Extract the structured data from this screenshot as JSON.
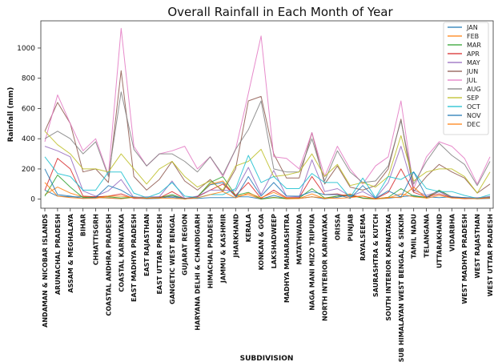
{
  "chart_data": {
    "type": "line",
    "title": "Overall Rainfall in Each Month of Year",
    "xlabel": "SUBDIVISION",
    "ylabel": "Rainfall (mm)",
    "ylim": [
      -60,
      1180
    ],
    "yticks": [
      0,
      200,
      400,
      600,
      800,
      1000
    ],
    "grid": false,
    "legend_position": "top-right",
    "categories": [
      "ANDAMAN & NICOBAR ISLANDS",
      "ARUNACHAL PRADESH",
      "ASSAM & MEGHALAYA",
      "BIHAR",
      "CHHATTISGRH",
      "COASTAL ANDHRA PRADESH",
      "COASTAL KARNATAKA",
      "EAST MADHYA PRADESH",
      "EAST RAJASTHAN",
      "EAST UTTAR PRADESH",
      "GANGETIC WEST BENGAL",
      "GUJARAT REGION",
      "HARYANA DELHI & CHANDIGARH",
      "HIMACHAL PRADESH",
      "JAMMU & KASHMIR",
      "JHARKHAND",
      "KERALA",
      "KONKAN & GOA",
      "LAKSHADWEEP",
      "MADHYA MAHARASHTRA",
      "MATATHWADA",
      "NAGA MANI MIZO TRIPURA",
      "NORTH INTERIOR KARNATAKA",
      "ORISSA",
      "PUNJAB",
      "RAYALSEEMA",
      "SAURASHTRA & KUTCH",
      "SOUTH INTERIOR KARNATAKA",
      "SUB HIMALAYAN WEST BENGAL & SIKKIM",
      "TAMIL NADU",
      "TELANGANA",
      "UTTARAKHAND",
      "VIDARBHA",
      "WEST MADHYA PRADESH",
      "WEST RAJASTHAN",
      "WEST UTTAR PRADESH"
    ],
    "series": [
      {
        "name": "JAN",
        "color": "#1f77b4",
        "values": [
          60,
          20,
          15,
          15,
          10,
          8,
          3,
          15,
          8,
          15,
          12,
          3,
          18,
          95,
          110,
          15,
          15,
          1,
          25,
          3,
          5,
          15,
          2,
          12,
          30,
          8,
          2,
          6,
          15,
          25,
          10,
          50,
          10,
          10,
          4,
          18
        ]
      },
      {
        "name": "FEB",
        "color": "#ff7f0e",
        "values": [
          30,
          80,
          40,
          15,
          12,
          8,
          3,
          12,
          8,
          12,
          22,
          1,
          18,
          100,
          120,
          20,
          30,
          1,
          12,
          2,
          4,
          35,
          3,
          20,
          35,
          5,
          1,
          8,
          35,
          15,
          8,
          55,
          10,
          7,
          5,
          15
        ]
      },
      {
        "name": "MAR",
        "color": "#2ca02c",
        "values": [
          20,
          160,
          80,
          10,
          15,
          15,
          8,
          12,
          5,
          10,
          30,
          1,
          15,
          110,
          150,
          25,
          45,
          1,
          10,
          5,
          8,
          70,
          8,
          20,
          25,
          8,
          2,
          12,
          70,
          20,
          12,
          60,
          15,
          7,
          5,
          12
        ]
      },
      {
        "name": "APR",
        "color": "#d62728",
        "values": [
          60,
          270,
          200,
          20,
          15,
          20,
          35,
          5,
          5,
          8,
          50,
          2,
          15,
          60,
          100,
          25,
          110,
          5,
          60,
          10,
          10,
          150,
          30,
          35,
          15,
          20,
          2,
          45,
          200,
          45,
          15,
          35,
          10,
          3,
          5,
          8
        ]
      },
      {
        "name": "MAY",
        "color": "#9467bd",
        "values": [
          350,
          320,
          280,
          55,
          20,
          55,
          130,
          10,
          15,
          15,
          120,
          5,
          20,
          60,
          60,
          55,
          210,
          30,
          190,
          20,
          15,
          260,
          50,
          70,
          20,
          50,
          5,
          110,
          350,
          60,
          25,
          50,
          15,
          10,
          10,
          15
        ]
      },
      {
        "name": "JUN",
        "color": "#8c564b",
        "values": [
          450,
          640,
          500,
          180,
          200,
          110,
          850,
          150,
          60,
          130,
          250,
          120,
          60,
          130,
          50,
          200,
          650,
          680,
          300,
          140,
          140,
          440,
          100,
          220,
          80,
          60,
          90,
          200,
          530,
          50,
          150,
          230,
          180,
          140,
          40,
          100
        ]
      },
      {
        "name": "JUL",
        "color": "#e377c2",
        "values": [
          380,
          690,
          500,
          320,
          400,
          160,
          1130,
          350,
          220,
          300,
          320,
          350,
          200,
          280,
          150,
          330,
          700,
          1080,
          280,
          270,
          200,
          440,
          150,
          350,
          200,
          100,
          220,
          280,
          650,
          70,
          280,
          380,
          350,
          270,
          100,
          280
        ]
      },
      {
        "name": "AUG",
        "color": "#7f7f7f",
        "values": [
          400,
          450,
          400,
          300,
          380,
          150,
          710,
          330,
          220,
          300,
          300,
          250,
          180,
          280,
          160,
          330,
          460,
          650,
          200,
          180,
          180,
          400,
          120,
          320,
          180,
          110,
          120,
          220,
          520,
          100,
          250,
          370,
          290,
          230,
          90,
          250
        ]
      },
      {
        "name": "SEP",
        "color": "#bcbd22",
        "values": [
          450,
          360,
          300,
          200,
          200,
          180,
          300,
          200,
          100,
          200,
          250,
          150,
          80,
          120,
          60,
          220,
          250,
          330,
          150,
          160,
          180,
          300,
          150,
          230,
          90,
          110,
          80,
          150,
          420,
          120,
          180,
          200,
          200,
          150,
          40,
          180
        ]
      },
      {
        "name": "OCT",
        "color": "#17becf",
        "values": [
          280,
          170,
          150,
          60,
          60,
          180,
          180,
          40,
          10,
          40,
          110,
          20,
          10,
          30,
          30,
          70,
          290,
          110,
          150,
          70,
          70,
          170,
          110,
          110,
          10,
          140,
          10,
          150,
          130,
          180,
          70,
          50,
          50,
          25,
          5,
          30
        ]
      },
      {
        "name": "NOV",
        "color": "#1f77b4",
        "values": [
          200,
          30,
          20,
          5,
          10,
          90,
          60,
          10,
          3,
          5,
          20,
          5,
          5,
          10,
          10,
          10,
          150,
          20,
          110,
          20,
          20,
          50,
          30,
          30,
          5,
          90,
          5,
          55,
          15,
          180,
          15,
          10,
          15,
          10,
          2,
          5
        ]
      },
      {
        "name": "DEC",
        "color": "#ff7f0e",
        "values": [
          110,
          20,
          10,
          5,
          5,
          20,
          20,
          10,
          5,
          8,
          5,
          2,
          8,
          30,
          50,
          8,
          40,
          10,
          45,
          5,
          5,
          15,
          8,
          5,
          10,
          20,
          2,
          12,
          10,
          80,
          5,
          25,
          8,
          5,
          3,
          8
        ]
      }
    ]
  }
}
